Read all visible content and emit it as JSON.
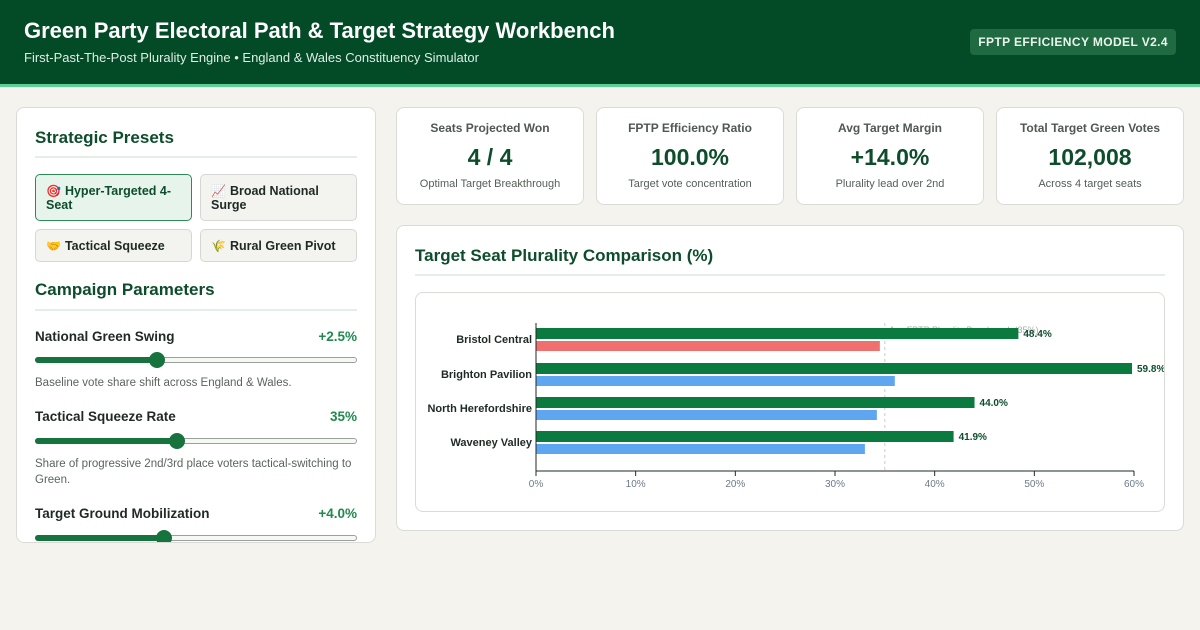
{
  "header": {
    "title": "Green Party Electoral Path & Target Strategy Workbench",
    "subtitle": "First-Past-The-Post Plurality Engine • England & Wales Constituency Simulator",
    "badge": "FPTP EFFICIENCY MODEL V2.4"
  },
  "presets": {
    "title": "Strategic Presets",
    "items": [
      {
        "icon": "🎯",
        "icon_name": "target-icon",
        "label": "Hyper-Targeted 4-Seat",
        "active": true
      },
      {
        "icon": "📈",
        "icon_name": "chart-up-icon",
        "label": "Broad National Surge",
        "active": false
      },
      {
        "icon": "🤝",
        "icon_name": "handshake-icon",
        "label": "Tactical Squeeze",
        "active": false
      },
      {
        "icon": "🌾",
        "icon_name": "wheat-icon",
        "label": "Rural Green Pivot",
        "active": false
      }
    ]
  },
  "parameters": {
    "title": "Campaign Parameters",
    "items": [
      {
        "label": "National Green Swing",
        "value": "+2.5%",
        "description": "Baseline vote share shift across England & Wales.",
        "level": 0.38
      },
      {
        "label": "Tactical Squeeze Rate",
        "value": "35%",
        "description": "Share of progressive 2nd/3rd place voters tactical-switching to Green.",
        "level": 0.44
      },
      {
        "label": "Target Ground Mobilization",
        "value": "+4.0%",
        "description": "",
        "level": 0.4
      }
    ]
  },
  "kpis": [
    {
      "label": "Seats Projected Won",
      "value": "4 / 4",
      "note": "Optimal Target Breakthrough"
    },
    {
      "label": "FPTP Efficiency Ratio",
      "value": "100.0%",
      "note": "Target vote concentration"
    },
    {
      "label": "Avg Target Margin",
      "value": "+14.0%",
      "note": "Plurality lead over 2nd"
    },
    {
      "label": "Total Target Green Votes",
      "value": "102,008",
      "note": "Across 4 target seats"
    }
  ],
  "chart_title": "Target Seat Plurality Comparison (%)",
  "colors": {
    "green": "#0a7a3e",
    "labour_red": "#f07070",
    "libdem_blue": "#5fa6f0",
    "header": "#034a26"
  },
  "chart_data": {
    "type": "bar",
    "orientation": "horizontal",
    "title": "Target Seat Plurality Comparison (%)",
    "categories": [
      "Bristol Central",
      "Brighton Pavilion",
      "North Herefordshire",
      "Waveney Valley"
    ],
    "series": [
      {
        "values": [
          48.4,
          59.8,
          44.0,
          41.9
        ],
        "labels": [
          "48.4%",
          "59.8%",
          "44.0%",
          "41.9%"
        ],
        "color": "#0a7a3e"
      },
      {
        "values": [
          34.5,
          36.0,
          34.2,
          33.0
        ],
        "colors": [
          "#f07070",
          "#5fa6f0",
          "#5fa6f0",
          "#5fa6f0"
        ]
      }
    ],
    "x_ticks": [
      "0%",
      "10%",
      "20%",
      "30%",
      "40%",
      "50%",
      "60%"
    ],
    "xlim": [
      0,
      60
    ],
    "benchmark": {
      "value": 35,
      "label": "Avg FPTP Plurality Benchmark (35%)"
    },
    "grid": false
  }
}
